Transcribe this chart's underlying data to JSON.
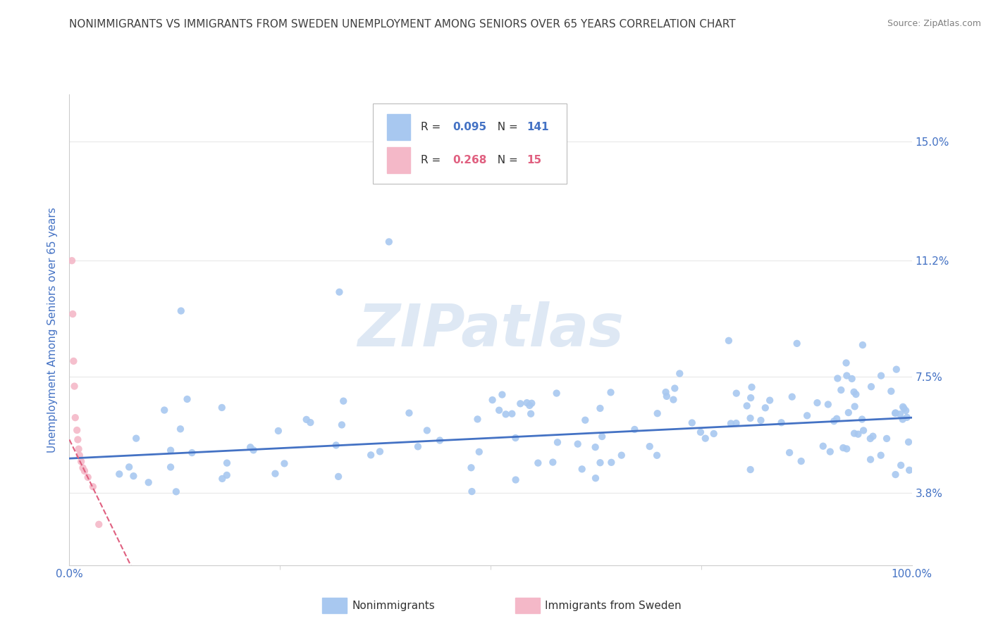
{
  "title": "NONIMMIGRANTS VS IMMIGRANTS FROM SWEDEN UNEMPLOYMENT AMONG SENIORS OVER 65 YEARS CORRELATION CHART",
  "source": "Source: ZipAtlas.com",
  "ylabel": "Unemployment Among Seniors over 65 years",
  "xlim": [
    0,
    100
  ],
  "ylim": [
    1.5,
    16.5
  ],
  "ytick_vals": [
    3.8,
    7.5,
    11.2,
    15.0
  ],
  "yticklabels": [
    "3.8%",
    "7.5%",
    "11.2%",
    "15.0%"
  ],
  "xticklabels": [
    "0.0%",
    "100.0%"
  ],
  "nonimm_color": "#a8c8f0",
  "nonimm_line_color": "#4472c4",
  "nonimm_R": "0.095",
  "nonimm_N": "141",
  "imm_color": "#f4b8c8",
  "imm_line_color": "#e06080",
  "imm_R": "0.268",
  "imm_N": "15",
  "axis_color": "#4472c4",
  "grid_color": "#e8e8e8",
  "background": "#ffffff",
  "watermark": "ZIPatlas",
  "watermark_color": "#d0dff0",
  "title_color": "#404040",
  "source_color": "#808080",
  "nonimm_trend_intercept": 4.9,
  "nonimm_trend_slope": 0.013,
  "imm_trend_intercept": 5.5,
  "imm_trend_slope": -0.55,
  "legend_label_1": "Nonimmigrants",
  "legend_label_2": "Immigrants from Sweden"
}
